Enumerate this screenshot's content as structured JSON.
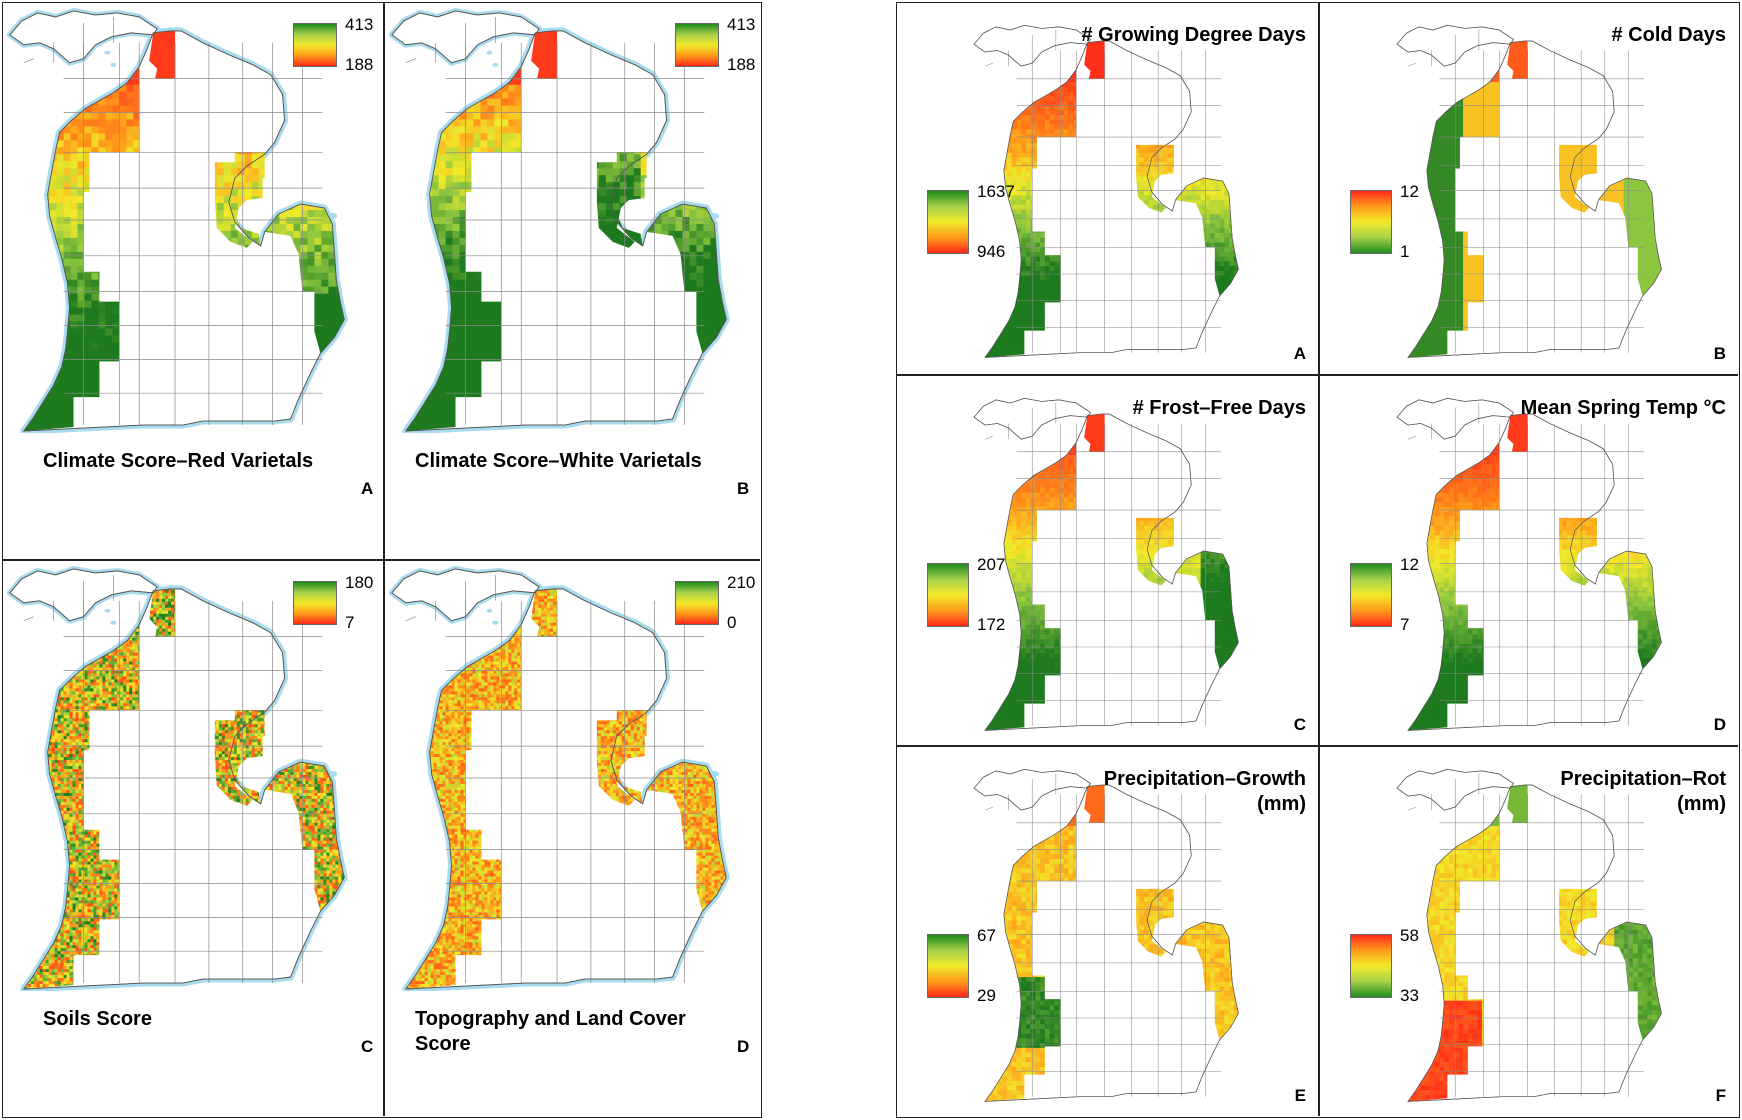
{
  "left_figure": {
    "panels": [
      {
        "id": "A",
        "title": "Climate Score–Red Varietals",
        "legend": {
          "max": "413",
          "min": "188",
          "high_color": "#1e8b1e",
          "low_color": "#ff2a1a"
        }
      },
      {
        "id": "B",
        "title": "Climate Score–White Varietals",
        "legend": {
          "max": "413",
          "min": "188",
          "high_color": "#1e8b1e",
          "low_color": "#ff2a1a"
        }
      },
      {
        "id": "C",
        "title": "Soils Score",
        "legend": {
          "max": "180",
          "min": "7",
          "high_color": "#1e8b1e",
          "low_color": "#ff2a1a"
        }
      },
      {
        "id": "D",
        "title": "Topography and Land Cover\nScore",
        "legend": {
          "max": "210",
          "min": "0",
          "high_color": "#1e8b1e",
          "low_color": "#ff2a1a"
        }
      }
    ]
  },
  "right_figure": {
    "panels": [
      {
        "id": "A",
        "title": "# Growing Degree Days",
        "legend": {
          "max": "1637",
          "min": "946",
          "top_color": "#1e8b1e",
          "bottom_color": "#ff2a1a"
        }
      },
      {
        "id": "B",
        "title": "# Cold Days",
        "legend": {
          "max": "12",
          "min": "1",
          "top_color": "#ff2a1a",
          "bottom_color": "#1e8b1e"
        }
      },
      {
        "id": "C",
        "title": "# Frost–Free Days",
        "legend": {
          "max": "207",
          "min": "172",
          "top_color": "#1e8b1e",
          "bottom_color": "#ff2a1a"
        }
      },
      {
        "id": "D",
        "title": "Mean Spring Temp °C",
        "legend": {
          "max": "12",
          "min": "7",
          "top_color": "#1e8b1e",
          "bottom_color": "#ff2a1a"
        }
      },
      {
        "id": "E",
        "title": "Precipitation–Growth\n(mm)",
        "legend": {
          "max": "67",
          "min": "29",
          "top_color": "#1e8b1e",
          "bottom_color": "#ff2a1a"
        }
      },
      {
        "id": "F",
        "title": "Precipitation–Rot\n(mm)",
        "legend": {
          "max": "58",
          "min": "33",
          "top_color": "#ff2a1a",
          "bottom_color": "#1e8b1e"
        }
      }
    ]
  },
  "colors": {
    "water": "#a9dbef",
    "county_line": "#8a8a8a",
    "mid_yellow": "#f2ea2a",
    "orange": "#ff9a1a"
  }
}
